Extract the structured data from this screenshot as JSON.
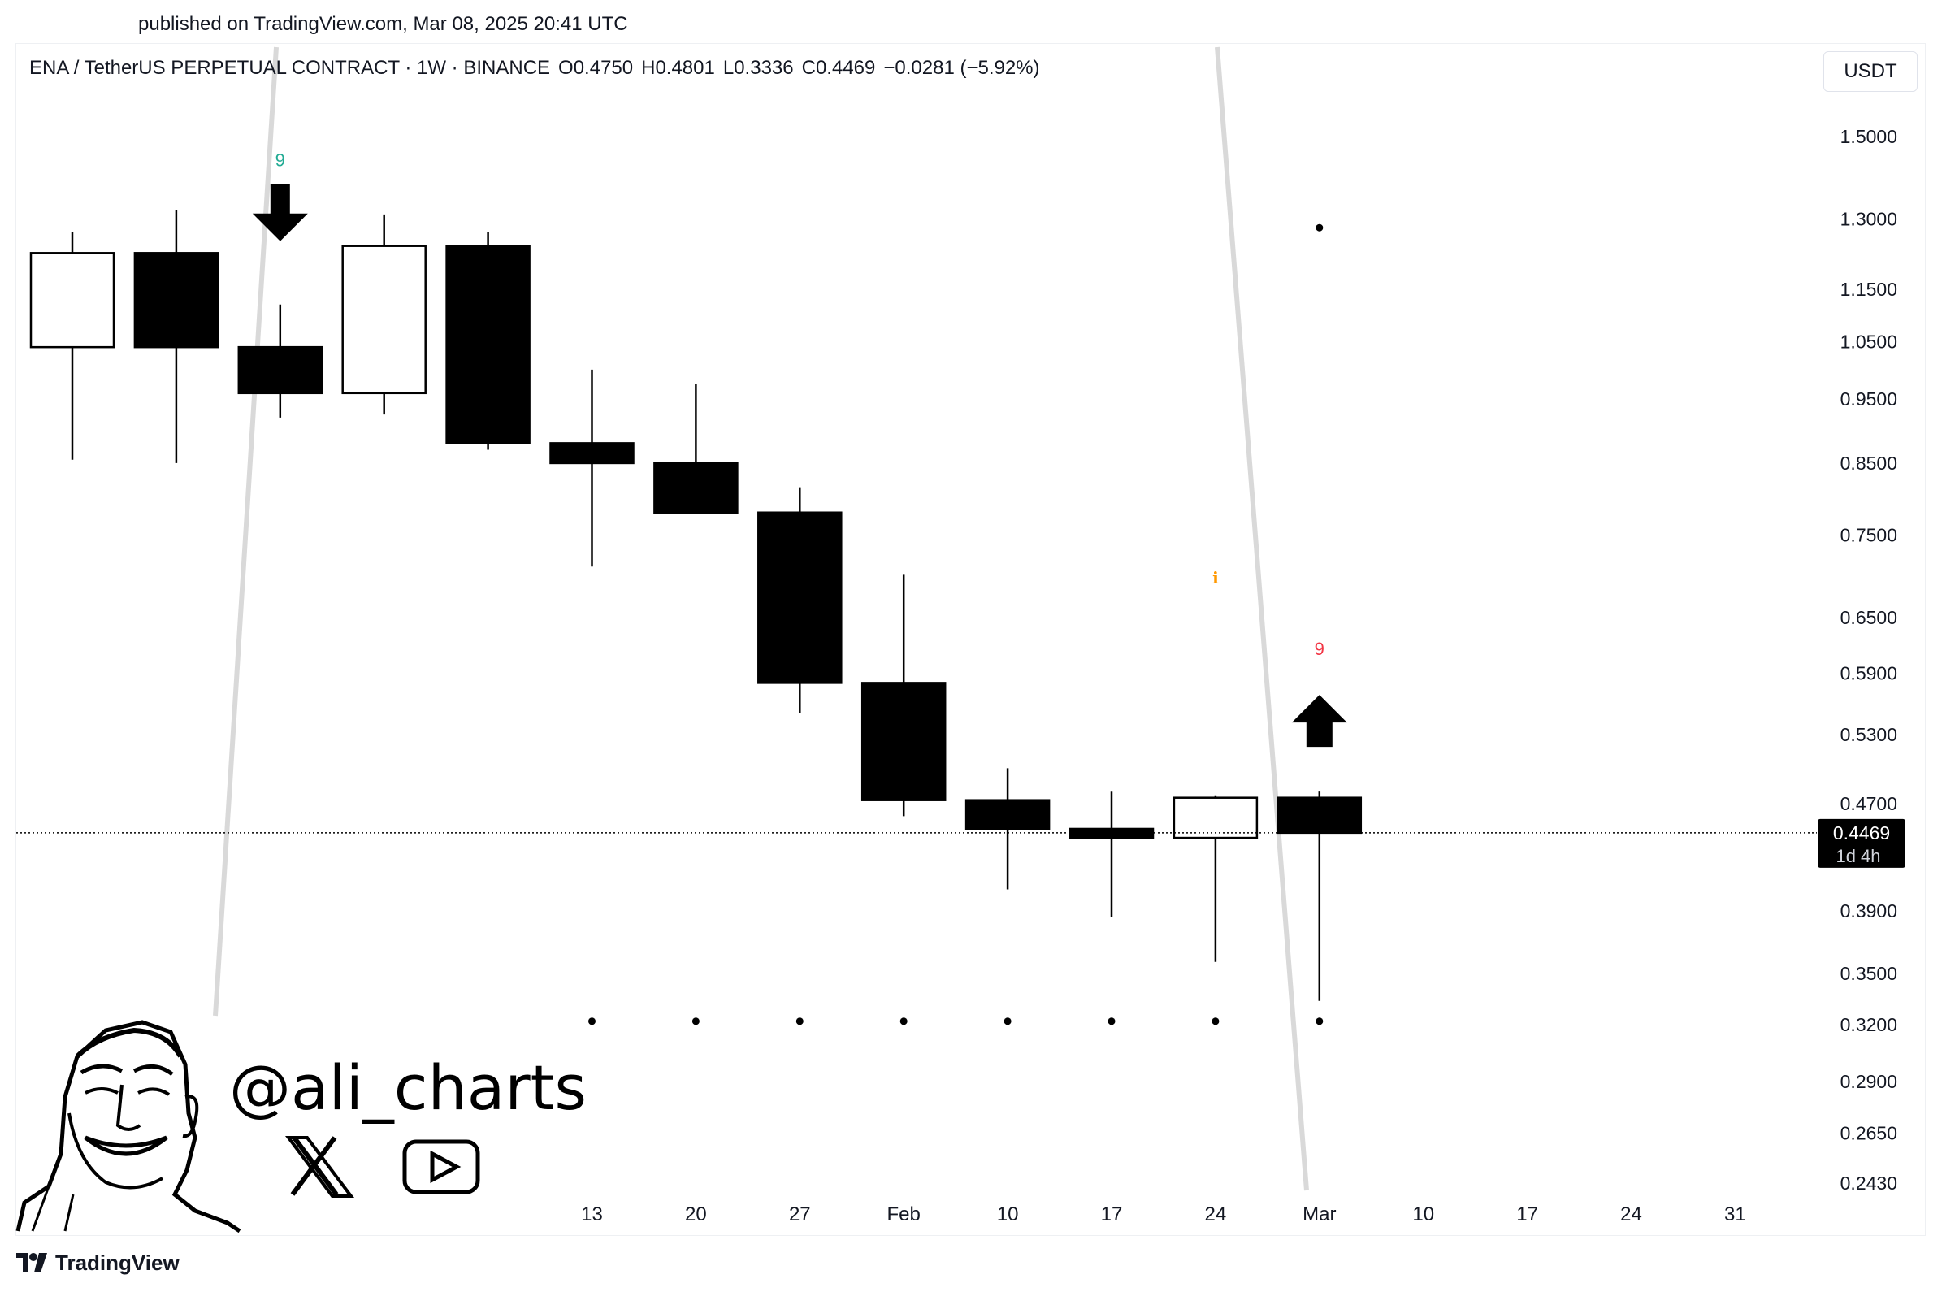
{
  "header": {
    "published": "published on TradingView.com, Mar 08, 2025 20:41 UTC"
  },
  "legend": {
    "symbol": "ENA / TetherUS PERPETUAL CONTRACT · 1W · BINANCE",
    "open": "O0.4750",
    "high": "H0.4801",
    "low": "L0.3336",
    "close": "C0.4469",
    "change": "−0.0281 (−5.92%)"
  },
  "currency_button": "USDT",
  "price_label": {
    "value": "0.4469",
    "countdown": "1d 4h"
  },
  "watermark": {
    "handle": "@ali_charts",
    "icons": [
      "x-logo-icon",
      "youtube-icon"
    ]
  },
  "footer": {
    "brand": "TradingView"
  },
  "colors": {
    "bull_body": "#ffffff",
    "bear_body": "#000000",
    "green": "#22ab94",
    "red": "#f23645",
    "orange": "#ff9800",
    "grey_line": "#d9d9d9"
  },
  "chart_data": {
    "type": "candlestick",
    "timeframe": "1W",
    "y_scale": "log",
    "y_ticks": [
      "1.5000",
      "1.3000",
      "1.1500",
      "1.0500",
      "0.9500",
      "0.8500",
      "0.7500",
      "0.6500",
      "0.5900",
      "0.5300",
      "0.4700",
      "0.3900",
      "0.3500",
      "0.3200",
      "0.2900",
      "0.2650",
      "0.2430"
    ],
    "x_ticks": [
      "13",
      "20",
      "27",
      "Feb",
      "10",
      "17",
      "24",
      "Mar",
      "10",
      "17",
      "24",
      "31"
    ],
    "candles": [
      {
        "o": 1.04,
        "h": 1.27,
        "l": 0.855,
        "c": 1.225
      },
      {
        "o": 1.225,
        "h": 1.32,
        "l": 0.85,
        "c": 1.04
      },
      {
        "o": 1.04,
        "h": 1.12,
        "l": 0.92,
        "c": 0.96
      },
      {
        "o": 0.96,
        "h": 1.31,
        "l": 0.925,
        "c": 1.24
      },
      {
        "o": 1.24,
        "h": 1.27,
        "l": 0.87,
        "c": 0.88
      },
      {
        "o": 0.88,
        "h": 1.0,
        "l": 0.71,
        "c": 0.85
      },
      {
        "o": 0.85,
        "h": 0.975,
        "l": 0.78,
        "c": 0.78
      },
      {
        "o": 0.78,
        "h": 0.815,
        "l": 0.55,
        "c": 0.58
      },
      {
        "o": 0.58,
        "h": 0.7,
        "l": 0.46,
        "c": 0.473
      },
      {
        "o": 0.473,
        "h": 0.5,
        "l": 0.405,
        "c": 0.45
      },
      {
        "o": 0.45,
        "h": 0.48,
        "l": 0.386,
        "c": 0.443
      },
      {
        "o": 0.443,
        "h": 0.477,
        "l": 0.357,
        "c": 0.475
      },
      {
        "o": 0.475,
        "h": 0.4801,
        "l": 0.3336,
        "c": 0.4469
      }
    ],
    "last_price": 0.4469,
    "markers": [
      {
        "candle": 2,
        "label": "9",
        "arrow": "down",
        "color": "green"
      },
      {
        "candle": 12,
        "label": "9",
        "arrow": "up",
        "color": "red"
      },
      {
        "candle": 11,
        "label": "i",
        "color": "orange"
      }
    ],
    "dots": [
      {
        "candle": 5,
        "value": 0.322
      },
      {
        "candle": 6,
        "value": 0.322
      },
      {
        "candle": 7,
        "value": 0.322
      },
      {
        "candle": 8,
        "value": 0.322
      },
      {
        "candle": 9,
        "value": 0.322
      },
      {
        "candle": 10,
        "value": 0.322
      },
      {
        "candle": 11,
        "value": 0.322
      },
      {
        "candle": 12,
        "value": 0.322
      },
      {
        "candle": 12,
        "value": 1.28
      }
    ]
  }
}
